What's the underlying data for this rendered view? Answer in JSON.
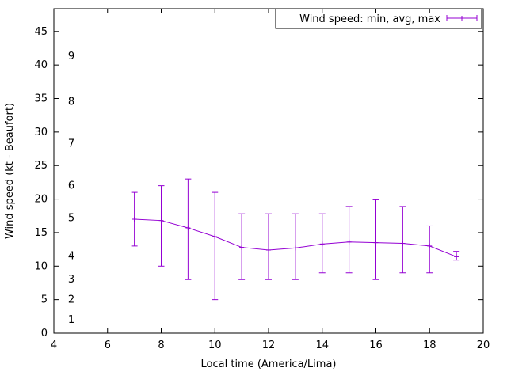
{
  "chart_data": {
    "type": "line",
    "style": "yerrorlines",
    "legend_label": "Wind speed: min, avg, max",
    "legend_position": "inside top right",
    "legend_box": true,
    "xlabel": "Local time (America/Lima)",
    "ylabel": "Wind speed (kt - Beaufort)",
    "xlim": [
      4,
      20
    ],
    "ylim": [
      0,
      48.4
    ],
    "xticks": [
      4,
      6,
      8,
      10,
      12,
      14,
      16,
      18,
      20
    ],
    "yticks": [
      0,
      5,
      10,
      15,
      20,
      25,
      30,
      35,
      40,
      45
    ],
    "grid": false,
    "beaufort_scale": [
      {
        "label": "1",
        "kt": 2
      },
      {
        "label": "2",
        "kt": 5
      },
      {
        "label": "3",
        "kt": 8
      },
      {
        "label": "4",
        "kt": 11.5
      },
      {
        "label": "5",
        "kt": 17.2
      },
      {
        "label": "6",
        "kt": 22
      },
      {
        "label": "7",
        "kt": 28.3
      },
      {
        "label": "8",
        "kt": 34.5
      },
      {
        "label": "9",
        "kt": 41.3
      }
    ],
    "series": [
      {
        "name": "Wind speed: min, avg, max",
        "color": "#9400d3",
        "x": [
          7,
          8,
          9,
          10,
          11,
          12,
          13,
          14,
          15,
          16,
          17,
          18,
          19
        ],
        "avg": [
          17.0,
          16.8,
          15.7,
          14.4,
          12.8,
          12.4,
          12.7,
          13.3,
          13.6,
          13.5,
          13.4,
          13.0,
          11.4
        ],
        "min": [
          13,
          10,
          8,
          5,
          8,
          8,
          8,
          9,
          9,
          8,
          9,
          9,
          10.9
        ],
        "max": [
          21,
          22,
          23,
          21,
          17.8,
          17.8,
          17.8,
          17.8,
          18.9,
          19.9,
          18.9,
          16.0,
          12.2
        ]
      }
    ],
    "axis_color": "#000000",
    "background": "#ffffff"
  }
}
